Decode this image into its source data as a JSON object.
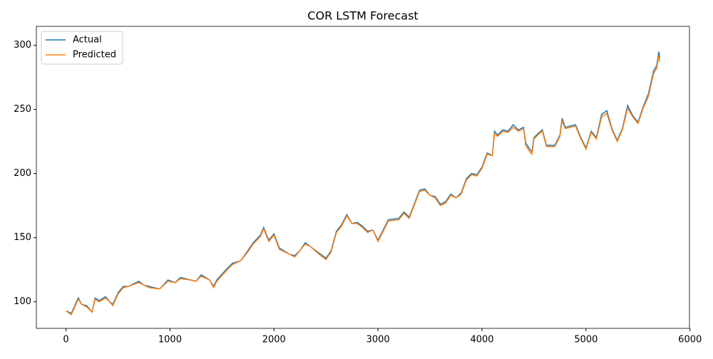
{
  "chart_data": {
    "type": "line",
    "title": "COR LSTM Forecast",
    "x": [
      0,
      50,
      80,
      100,
      120,
      150,
      200,
      250,
      280,
      320,
      380,
      420,
      450,
      500,
      550,
      600,
      700,
      750,
      800,
      900,
      980,
      1050,
      1100,
      1200,
      1250,
      1300,
      1380,
      1420,
      1450,
      1550,
      1600,
      1680,
      1750,
      1800,
      1870,
      1900,
      1950,
      2000,
      2050,
      2150,
      2200,
      2250,
      2300,
      2350,
      2450,
      2500,
      2550,
      2600,
      2650,
      2700,
      2750,
      2800,
      2850,
      2900,
      2950,
      3000,
      3050,
      3100,
      3200,
      3250,
      3300,
      3400,
      3450,
      3500,
      3550,
      3600,
      3650,
      3700,
      3750,
      3800,
      3850,
      3900,
      3950,
      4000,
      4050,
      4100,
      4120,
      4150,
      4200,
      4250,
      4300,
      4350,
      4400,
      4420,
      4450,
      4480,
      4500,
      4550,
      4580,
      4620,
      4700,
      4750,
      4770,
      4800,
      4850,
      4900,
      4950,
      5000,
      5050,
      5100,
      5150,
      5200,
      5250,
      5300,
      5350,
      5400,
      5450,
      5500,
      5550,
      5600,
      5650,
      5680,
      5700,
      5710
    ],
    "series": [
      {
        "name": "Actual",
        "color": "#1f77b4",
        "values": [
          93,
          91,
          96,
          100,
          103,
          98,
          97,
          92,
          103,
          101,
          104,
          100,
          98,
          107,
          112,
          112,
          116,
          113,
          112,
          110,
          117,
          115,
          119,
          117,
          116,
          121,
          117,
          112,
          117,
          126,
          130,
          132,
          140,
          146,
          152,
          158,
          148,
          153,
          142,
          137,
          136,
          140,
          146,
          143,
          137,
          134,
          140,
          155,
          160,
          168,
          161,
          162,
          159,
          155,
          156,
          148,
          156,
          164,
          165,
          170,
          166,
          187,
          188,
          183,
          182,
          176,
          178,
          184,
          181,
          185,
          196,
          200,
          199,
          205,
          216,
          214,
          233,
          230,
          234,
          233,
          238,
          234,
          236,
          224,
          220,
          217,
          228,
          232,
          234,
          222,
          222,
          230,
          243,
          236,
          237,
          238,
          228,
          220,
          233,
          228,
          246,
          249,
          235,
          226,
          235,
          253,
          245,
          240,
          252,
          262,
          280,
          284,
          295,
          290
        ]
      },
      {
        "name": "Predicted",
        "color": "#ff7f0e",
        "values": [
          93,
          90,
          95,
          99,
          102,
          98,
          96,
          92,
          102,
          100,
          103,
          100,
          97,
          106,
          111,
          112,
          115,
          113,
          111,
          110,
          116,
          115,
          118,
          117,
          116,
          120,
          117,
          111,
          116,
          125,
          129,
          132,
          139,
          145,
          151,
          157,
          147,
          152,
          141,
          137,
          135,
          140,
          145,
          143,
          136,
          133,
          139,
          154,
          159,
          167,
          161,
          161,
          158,
          154,
          156,
          147,
          155,
          163,
          164,
          169,
          165,
          186,
          187,
          183,
          181,
          175,
          177,
          183,
          181,
          184,
          195,
          199,
          198,
          204,
          215,
          214,
          231,
          229,
          233,
          232,
          236,
          233,
          235,
          222,
          218,
          215,
          227,
          231,
          233,
          221,
          221,
          229,
          241,
          235,
          236,
          237,
          227,
          219,
          232,
          227,
          244,
          247,
          234,
          225,
          234,
          251,
          244,
          239,
          251,
          260,
          278,
          282,
          292,
          287
        ]
      }
    ],
    "xlim": [
      -285,
      5995
    ],
    "xticks": [
      0,
      1000,
      2000,
      3000,
      4000,
      5000,
      6000
    ],
    "ylim": [
      79.3,
      314.7
    ],
    "yticks": [
      100,
      150,
      200,
      250,
      300
    ],
    "legend": "upper left",
    "grid": false
  }
}
